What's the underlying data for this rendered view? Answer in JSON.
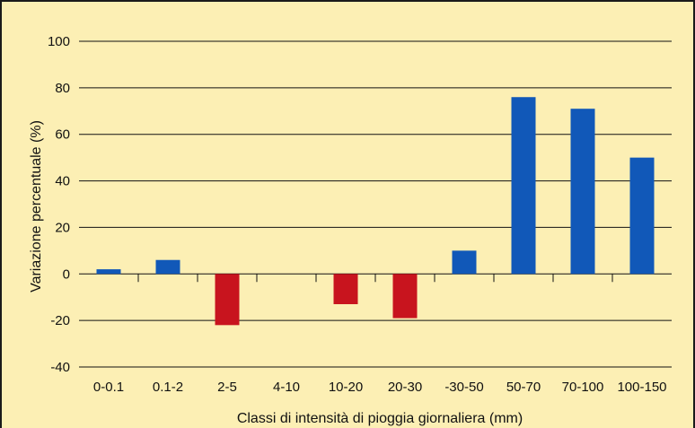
{
  "chart_data": {
    "type": "bar",
    "title": "",
    "xlabel": "Classi di intensità di pioggia giornaliera (mm)",
    "ylabel": "Variazione percentuale (%)",
    "ylim": [
      -40,
      100
    ],
    "yticks": [
      100,
      80,
      60,
      40,
      20,
      0,
      -20,
      -40
    ],
    "ytick_labels": [
      "100",
      "80",
      "60",
      "40",
      "20",
      "0",
      "-20",
      "-40"
    ],
    "categories": [
      "0-0.1",
      "0.1-2",
      "2-5",
      "4-10",
      "10-20",
      "20-30",
      "-30-50",
      "50-70",
      "70-100",
      "100-150"
    ],
    "values": [
      2,
      6,
      -22,
      0,
      -13,
      -19,
      10,
      76,
      71,
      50
    ],
    "grid": true,
    "colors": {
      "positive": "#1158b8",
      "negative": "#c8141e",
      "background": "#fcefb4",
      "gridline": "#111111"
    }
  }
}
